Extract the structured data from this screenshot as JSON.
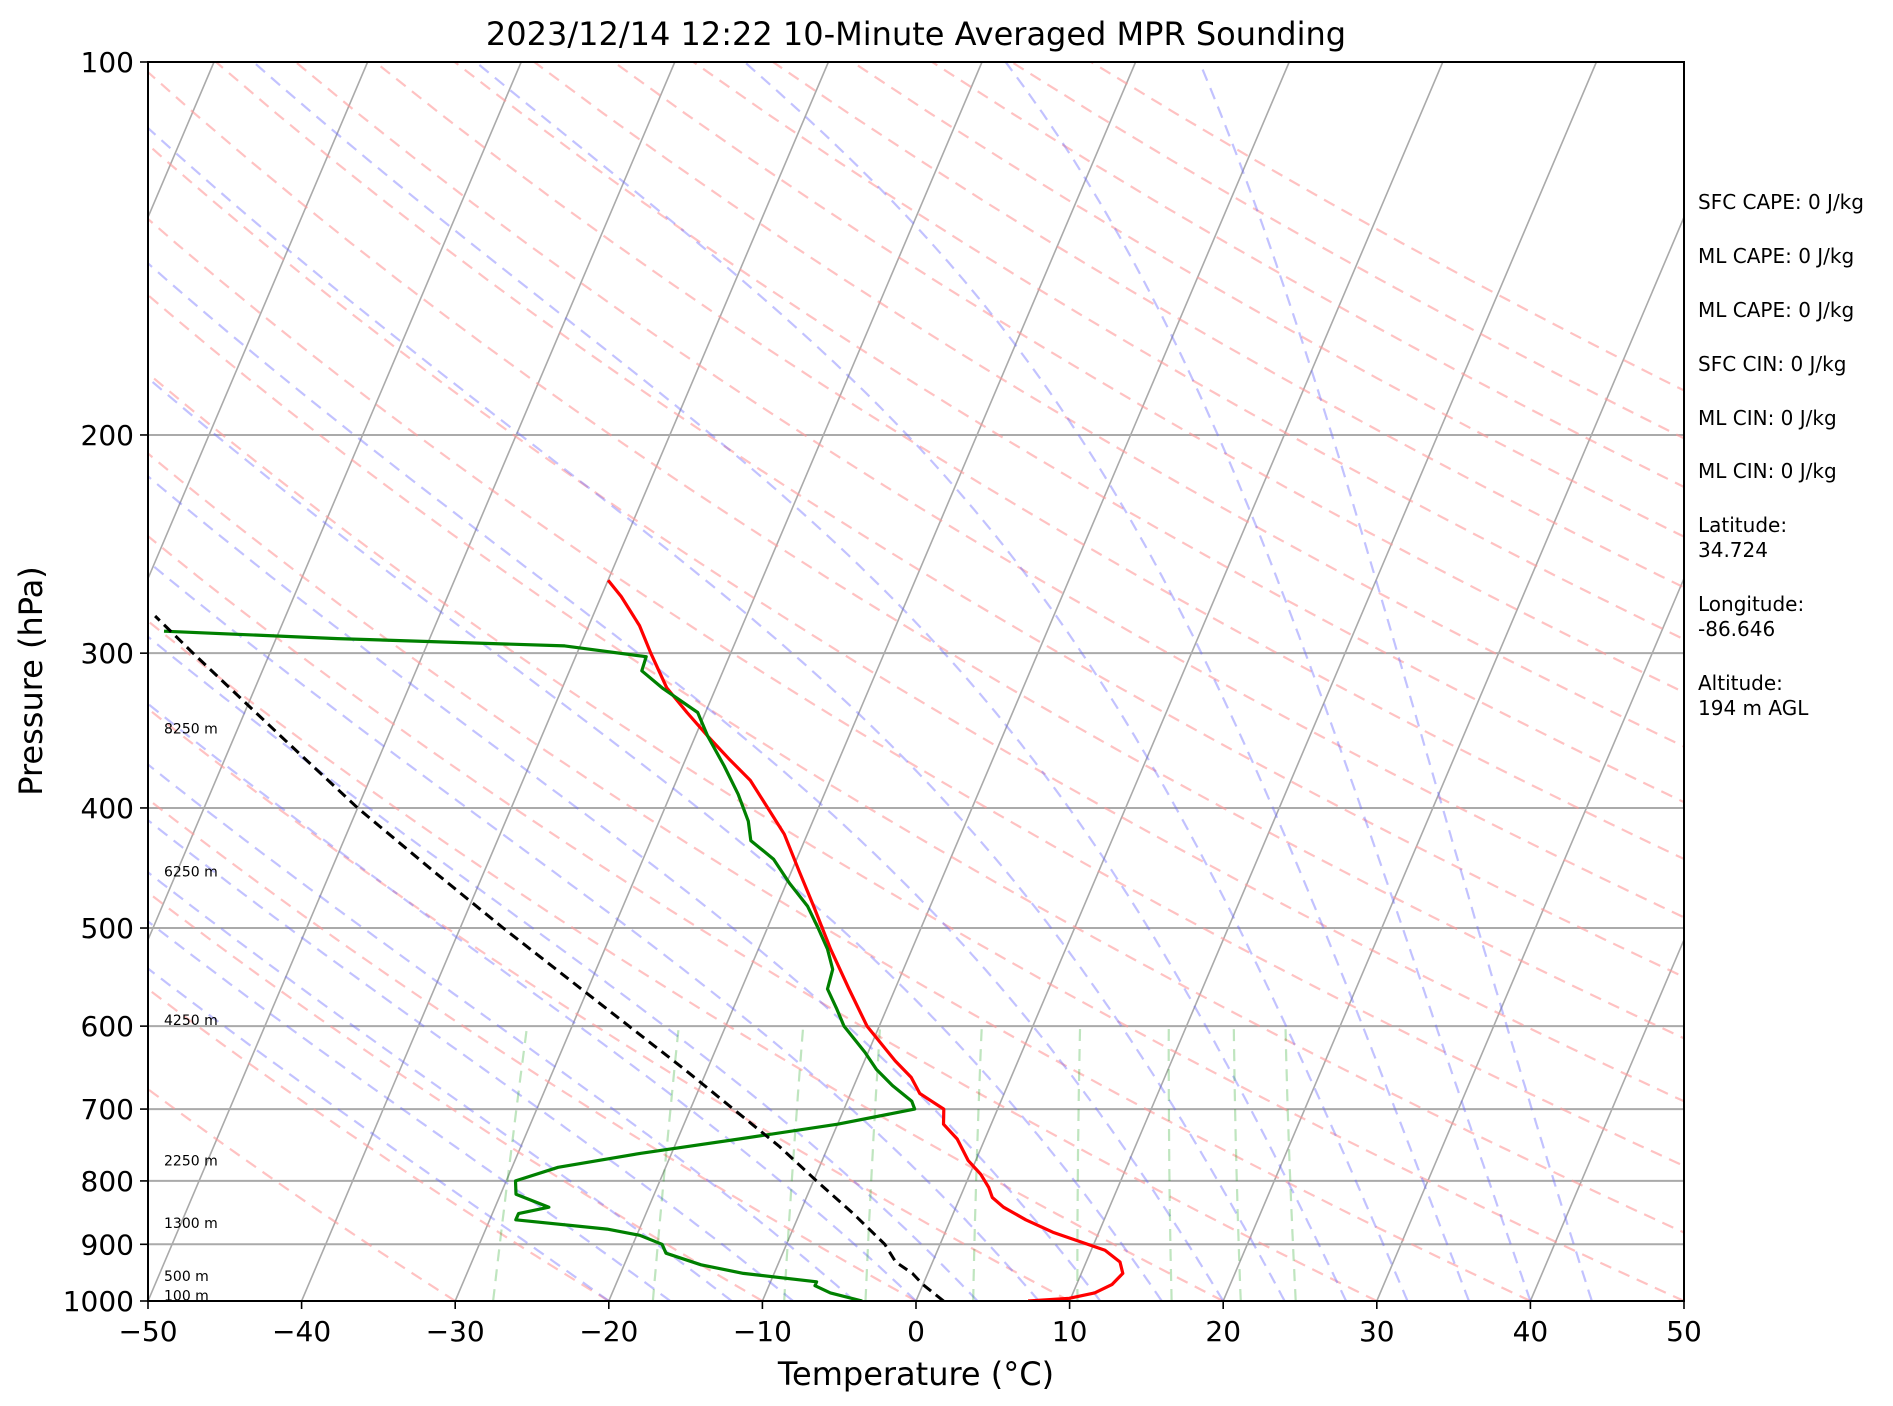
{
  "chart_data": {
    "type": "line",
    "title": "2023/12/14 12:22 10-Minute Averaged MPR Sounding",
    "xlabel": "Temperature (°C)",
    "ylabel": "Pressure (hPa)",
    "xlim": [
      -50,
      50
    ],
    "ylim": [
      1000,
      100
    ],
    "y_scale": "log",
    "skew": "skew-T log-p diagram",
    "grid": true,
    "x_ticks": [
      "−50",
      "−40",
      "−30",
      "−20",
      "−10",
      "0",
      "10",
      "20",
      "30",
      "40",
      "50"
    ],
    "y_ticks": [
      "100",
      "200",
      "300",
      "400",
      "500",
      "600",
      "700",
      "800",
      "900",
      "1000"
    ],
    "height_labels": [
      {
        "p": 345,
        "text": "8250 m"
      },
      {
        "p": 450,
        "text": "6250 m"
      },
      {
        "p": 593,
        "text": "4250 m"
      },
      {
        "p": 770,
        "text": "2250 m"
      },
      {
        "p": 865,
        "text": "1300 m"
      },
      {
        "p": 955,
        "text": "500 m"
      },
      {
        "p": 990,
        "text": "100 m"
      }
    ],
    "series": [
      {
        "kind": "temperature",
        "color": "#ff0000",
        "points": [
          [
            1000,
            7.3
          ],
          [
            995,
            9.9
          ],
          [
            985,
            11.4
          ],
          [
            970,
            12.3
          ],
          [
            950,
            12.7
          ],
          [
            930,
            12.2
          ],
          [
            910,
            10.9
          ],
          [
            880,
            7.0
          ],
          [
            860,
            4.9
          ],
          [
            840,
            3.1
          ],
          [
            825,
            2.1
          ],
          [
            810,
            1.6
          ],
          [
            790,
            0.7
          ],
          [
            770,
            -0.5
          ],
          [
            740,
            -1.8
          ],
          [
            720,
            -3.1
          ],
          [
            700,
            -3.5
          ],
          [
            690,
            -4.5
          ],
          [
            680,
            -5.5
          ],
          [
            660,
            -6.5
          ],
          [
            640,
            -8.0
          ],
          [
            600,
            -10.8
          ],
          [
            560,
            -13.0
          ],
          [
            520,
            -15.3
          ],
          [
            480,
            -17.6
          ],
          [
            450,
            -19.5
          ],
          [
            420,
            -21.5
          ],
          [
            400,
            -23.3
          ],
          [
            380,
            -25.2
          ],
          [
            365,
            -27.2
          ],
          [
            350,
            -29.2
          ],
          [
            335,
            -31.2
          ],
          [
            320,
            -33.2
          ],
          [
            300,
            -35.2
          ],
          [
            285,
            -36.7
          ],
          [
            270,
            -38.7
          ],
          [
            262,
            -40.0
          ]
        ]
      },
      {
        "kind": "dewpoint",
        "color": "#008000",
        "points": [
          [
            1000,
            -3.5
          ],
          [
            985,
            -5.8
          ],
          [
            972,
            -7.0
          ],
          [
            965,
            -7.0
          ],
          [
            950,
            -12.0
          ],
          [
            935,
            -15.0
          ],
          [
            915,
            -17.6
          ],
          [
            900,
            -18.1
          ],
          [
            885,
            -19.8
          ],
          [
            875,
            -22.1
          ],
          [
            860,
            -28.3
          ],
          [
            850,
            -28.3
          ],
          [
            840,
            -26.5
          ],
          [
            820,
            -29.0
          ],
          [
            800,
            -29.4
          ],
          [
            780,
            -27.0
          ],
          [
            760,
            -22.0
          ],
          [
            740,
            -16.0
          ],
          [
            720,
            -10.0
          ],
          [
            700,
            -5.4
          ],
          [
            690,
            -5.8
          ],
          [
            670,
            -7.5
          ],
          [
            650,
            -9.0
          ],
          [
            630,
            -10.2
          ],
          [
            600,
            -12.3
          ],
          [
            580,
            -13.3
          ],
          [
            560,
            -14.4
          ],
          [
            540,
            -14.6
          ],
          [
            520,
            -15.5
          ],
          [
            500,
            -16.7
          ],
          [
            480,
            -18.0
          ],
          [
            460,
            -19.8
          ],
          [
            440,
            -21.5
          ],
          [
            425,
            -23.5
          ],
          [
            410,
            -24.2
          ],
          [
            390,
            -25.6
          ],
          [
            370,
            -27.3
          ],
          [
            350,
            -29.2
          ],
          [
            335,
            -30.5
          ],
          [
            320,
            -33.5
          ],
          [
            310,
            -35.3
          ],
          [
            302,
            -35.4
          ],
          [
            296,
            -41.0
          ],
          [
            292,
            -56.0
          ],
          [
            288,
            -67.5
          ]
        ]
      }
    ],
    "parcel_profile": {
      "color": "#000000",
      "style": "dashed",
      "points": [
        [
          1000,
          1.8
        ],
        [
          970,
          0.0
        ],
        [
          950,
          -1.0
        ],
        [
          930,
          -2.4
        ],
        [
          900,
          -3.6
        ],
        [
          850,
          -6.5
        ],
        [
          800,
          -9.8
        ],
        [
          750,
          -13.2
        ],
        [
          700,
          -17.2
        ],
        [
          650,
          -21.5
        ],
        [
          600,
          -26.3
        ],
        [
          550,
          -31.5
        ],
        [
          500,
          -37.2
        ],
        [
          450,
          -43.3
        ],
        [
          400,
          -50.0
        ],
        [
          350,
          -57.0
        ],
        [
          300,
          -65.0
        ],
        [
          280,
          -68.5
        ]
      ]
    },
    "side_text": [
      "SFC CAPE: 0 J/kg",
      "ML CAPE: 0 J/kg",
      "ML CAPE: 0 J/kg",
      "SFC CIN: 0 J/kg",
      "ML CIN: 0 J/kg",
      "ML CIN: 0 J/kg",
      "Latitude:",
      "34.724",
      "Longitude:",
      "-86.646",
      "Altitude:",
      "194 m AGL"
    ]
  }
}
